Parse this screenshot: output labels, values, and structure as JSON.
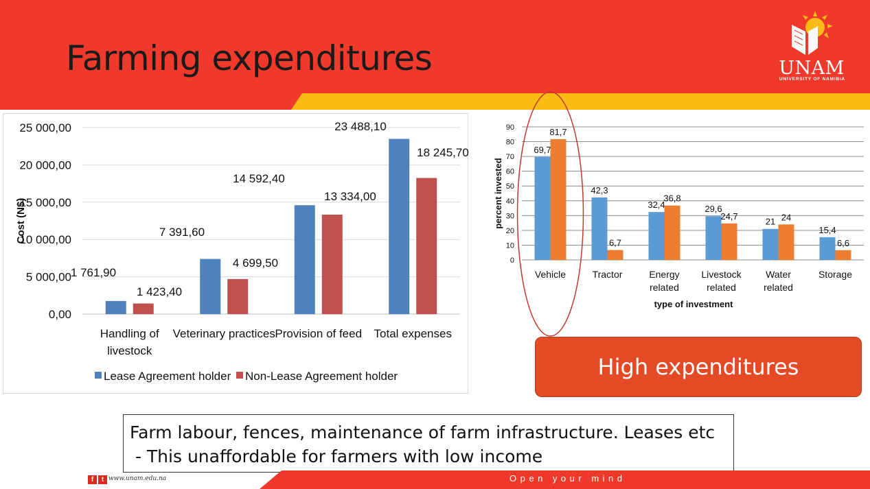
{
  "slide": {
    "title": "Farming expenditures",
    "logo_text": "UNAM",
    "logo_subtext": "UNIVERSITY OF NAMIBIA",
    "callout": "High expenditures",
    "note_line1": "Farm labour, fences, maintenance of farm infrastructure. Leases etc",
    "note_line2": " - This unaffordable for farmers with low income",
    "website": "www.unam.edu.na",
    "tagline": "Open your mind",
    "colors": {
      "header_red": "#ef3a2b",
      "stripe_yellow": "#fbbc15",
      "callout_orange": "#e44a26"
    }
  },
  "chart_data": [
    {
      "type": "bar",
      "categories": [
        "Handling of livestock",
        "Veterinary practices",
        "Provision of feed",
        "Total expenses"
      ],
      "category_lines": [
        [
          "Handling of",
          "livestock"
        ],
        [
          "Veterinary practices"
        ],
        [
          "Provision of feed"
        ],
        [
          "Total expenses"
        ]
      ],
      "series": [
        {
          "name": "Lease Agreement holder",
          "values": [
            1761.9,
            7391.6,
            14592.4,
            23488.1
          ],
          "labels": [
            "1 761,90",
            "7 391,60",
            "14 592,40",
            "23 488,10"
          ],
          "color": "#4f81bd"
        },
        {
          "name": "Non-Lease Agreement holder",
          "values": [
            1423.4,
            4699.5,
            13334.0,
            18245.7
          ],
          "labels": [
            "1 423,40",
            "4 699,50",
            "13 334,00",
            "18 245,70"
          ],
          "color": "#c0504d"
        }
      ],
      "ylabel": "Cost (N$)",
      "xlabel": "",
      "ylim": [
        0,
        25000
      ],
      "yticks": [
        0,
        5000,
        10000,
        15000,
        20000,
        25000
      ],
      "ytick_labels": [
        "0,00",
        "5 000,00",
        "10 000,00",
        "15 000,00",
        "20 000,00",
        "25 000,00"
      ],
      "legend": "bottom",
      "grid": true
    },
    {
      "type": "bar",
      "categories": [
        "Vehicle",
        "Tractor",
        "Energy related",
        "Livestock related",
        "Water related",
        "Storage"
      ],
      "category_lines": [
        [
          "Vehicle"
        ],
        [
          "Tractor"
        ],
        [
          "Energy",
          "related"
        ],
        [
          "Livestock",
          "related"
        ],
        [
          "Water",
          "related"
        ],
        [
          "Storage"
        ]
      ],
      "series": [
        {
          "values": [
            69.7,
            42.3,
            32.4,
            29.6,
            21,
            15.4
          ],
          "labels": [
            "69,7",
            "42,3",
            "32,4",
            "29,6",
            "21",
            "15,4"
          ],
          "color": "#5b9bd5"
        },
        {
          "values": [
            81.7,
            6.7,
            36.8,
            24.7,
            24,
            6.6
          ],
          "labels": [
            "81,7",
            "6,7",
            "36,8",
            "24,7",
            "24",
            "6,6"
          ],
          "color": "#ed7d31"
        }
      ],
      "ylabel": "percent invested",
      "xlabel": "type of investment",
      "ylim": [
        0,
        90
      ],
      "yticks": [
        0,
        10,
        20,
        30,
        40,
        50,
        60,
        70,
        80,
        90
      ],
      "ytick_labels": [
        "0",
        "10",
        "20",
        "30",
        "40",
        "50",
        "60",
        "70",
        "80",
        "90"
      ],
      "grid": true,
      "highlight_category": "Vehicle"
    }
  ]
}
